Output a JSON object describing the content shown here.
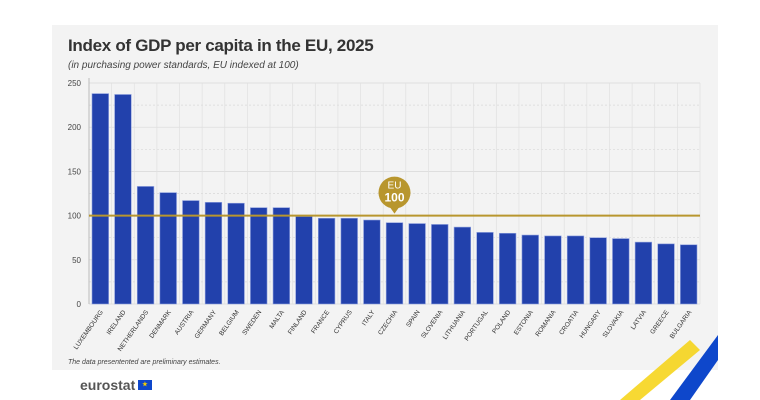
{
  "chart_data": {
    "type": "bar",
    "title": "Index of GDP per capita in the EU, 2025",
    "subtitle": "(in purchasing power standards, EU indexed at 100)",
    "categories": [
      "LUXEMBOURG",
      "IRELAND",
      "NETHERLANDS",
      "DENMARK",
      "AUSTRIA",
      "GERMANY",
      "BELGIUM",
      "SWEDEN",
      "MALTA",
      "FINLAND",
      "FRANCE",
      "CYPRUS",
      "ITALY",
      "CZECHIA",
      "SPAIN",
      "SLOVENIA",
      "LITHUANIA",
      "PORTUGAL",
      "POLAND",
      "ESTONIA",
      "ROMANIA",
      "CROATIA",
      "HUNGARY",
      "SLOVAKIA",
      "LATVIA",
      "GREECE",
      "BULGARIA"
    ],
    "values": [
      238,
      237,
      133,
      126,
      117,
      115,
      114,
      109,
      109,
      99,
      97,
      97,
      95,
      92,
      91,
      90,
      87,
      81,
      80,
      78,
      77,
      77,
      75,
      74,
      70,
      68,
      67
    ],
    "ylim": [
      0,
      250
    ],
    "yticks": [
      "0",
      "50",
      "100",
      "150",
      "200",
      "250"
    ],
    "grid": true,
    "reference_line": {
      "value": 100,
      "label_top": "EU",
      "label_bottom": "100"
    },
    "colors": {
      "bar": "#2241ac",
      "reference": "#b8962e",
      "background": "#f3f3f3"
    },
    "note": "The data presentented are preliminary estimates."
  },
  "brand": {
    "name": "eurostat"
  }
}
